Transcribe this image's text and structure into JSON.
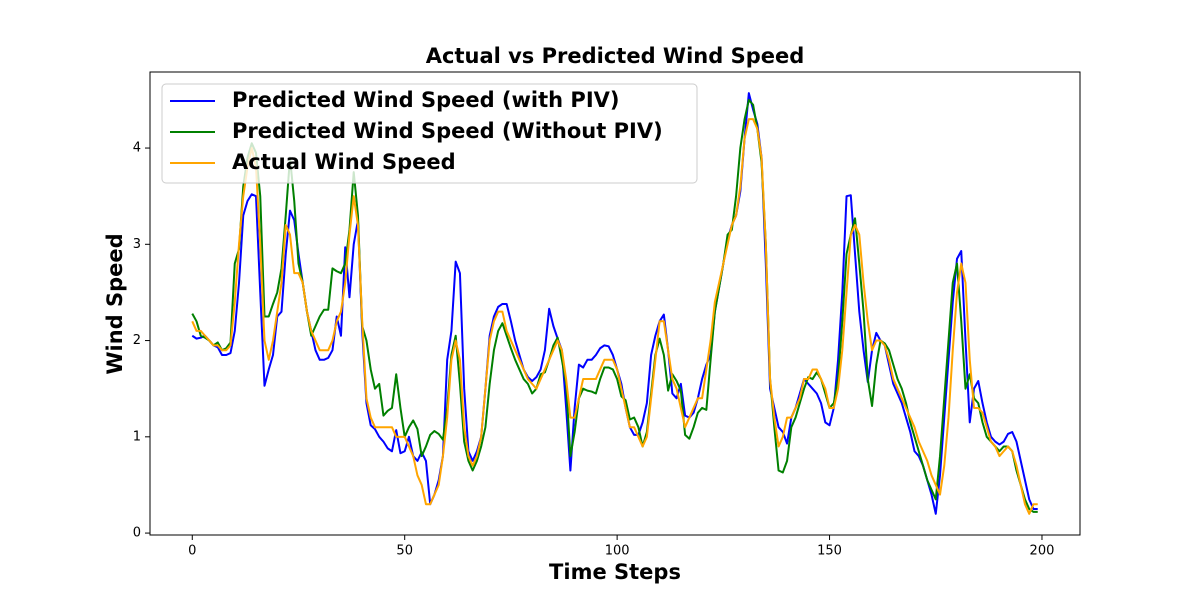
{
  "chart_data": {
    "type": "line",
    "title": "Actual vs Predicted Wind Speed",
    "x_label": "Time Steps",
    "y_label": "Wind Speed",
    "x": [
      0,
      1,
      2,
      3,
      4,
      5,
      6,
      7,
      8,
      9,
      10,
      11,
      12,
      13,
      14,
      15,
      16,
      17,
      18,
      19,
      20,
      21,
      22,
      23,
      24,
      25,
      26,
      27,
      28,
      29,
      30,
      31,
      32,
      33,
      34,
      35,
      36,
      37,
      38,
      39,
      40,
      41,
      42,
      43,
      44,
      45,
      46,
      47,
      48,
      49,
      50,
      51,
      52,
      53,
      54,
      55,
      56,
      57,
      58,
      59,
      60,
      61,
      62,
      63,
      64,
      65,
      66,
      67,
      68,
      69,
      70,
      71,
      72,
      73,
      74,
      75,
      76,
      77,
      78,
      79,
      80,
      81,
      82,
      83,
      84,
      85,
      86,
      87,
      88,
      89,
      90,
      91,
      92,
      93,
      94,
      95,
      96,
      97,
      98,
      99,
      100,
      101,
      102,
      103,
      104,
      105,
      106,
      107,
      108,
      109,
      110,
      111,
      112,
      113,
      114,
      115,
      116,
      117,
      118,
      119,
      120,
      121,
      122,
      123,
      124,
      125,
      126,
      127,
      128,
      129,
      130,
      131,
      132,
      133,
      134,
      135,
      136,
      137,
      138,
      139,
      140,
      141,
      142,
      143,
      144,
      145,
      146,
      147,
      148,
      149,
      150,
      151,
      152,
      153,
      154,
      155,
      156,
      157,
      158,
      159,
      160,
      161,
      162,
      163,
      164,
      165,
      166,
      167,
      168,
      169,
      170,
      171,
      172,
      173,
      174,
      175,
      176,
      177,
      178,
      179,
      180,
      181,
      182,
      183,
      184,
      185,
      186,
      187,
      188,
      189,
      190,
      191,
      192,
      193,
      194,
      195,
      196,
      197,
      198,
      199
    ],
    "series": [
      {
        "name": "Predicted Wind Speed (with PIV)",
        "color": "#0000ff",
        "values": [
          2.05,
          2.02,
          2.03,
          2.05,
          2.0,
          1.95,
          1.93,
          1.85,
          1.85,
          1.87,
          2.1,
          2.6,
          3.3,
          3.45,
          3.52,
          3.5,
          2.5,
          1.53,
          1.7,
          1.85,
          2.25,
          2.3,
          2.9,
          3.35,
          3.25,
          2.9,
          2.6,
          2.3,
          2.1,
          1.9,
          1.8,
          1.8,
          1.82,
          1.9,
          2.25,
          2.05,
          2.97,
          2.45,
          3.0,
          3.25,
          2.1,
          1.35,
          1.12,
          1.08,
          1.0,
          0.95,
          0.88,
          0.85,
          1.07,
          0.83,
          0.85,
          1.0,
          0.8,
          0.75,
          0.84,
          0.75,
          0.3,
          0.4,
          0.55,
          0.8,
          1.8,
          2.1,
          2.82,
          2.7,
          1.5,
          0.85,
          0.75,
          0.85,
          1.0,
          1.5,
          2.05,
          2.25,
          2.35,
          2.38,
          2.38,
          2.2,
          2.0,
          1.85,
          1.7,
          1.62,
          1.58,
          1.62,
          1.7,
          1.9,
          2.33,
          2.15,
          2.02,
          1.9,
          1.3,
          0.65,
          1.3,
          1.75,
          1.72,
          1.8,
          1.8,
          1.85,
          1.92,
          1.95,
          1.94,
          1.85,
          1.7,
          1.55,
          1.3,
          1.1,
          1.02,
          1.02,
          1.15,
          1.35,
          1.85,
          2.05,
          2.2,
          2.27,
          1.9,
          1.45,
          1.4,
          1.55,
          1.22,
          1.2,
          1.25,
          1.4,
          1.6,
          1.75,
          1.85,
          2.3,
          2.55,
          2.8,
          3.05,
          3.2,
          3.3,
          3.55,
          4.1,
          4.57,
          4.4,
          4.25,
          3.9,
          2.8,
          1.5,
          1.3,
          1.1,
          1.05,
          0.93,
          1.2,
          1.3,
          1.45,
          1.6,
          1.55,
          1.5,
          1.45,
          1.35,
          1.15,
          1.12,
          1.3,
          1.8,
          2.5,
          3.5,
          3.51,
          2.9,
          2.3,
          1.9,
          1.57,
          1.9,
          2.08,
          2.0,
          1.95,
          1.75,
          1.55,
          1.45,
          1.35,
          1.2,
          1.05,
          0.85,
          0.8,
          0.7,
          0.55,
          0.4,
          0.2,
          0.6,
          1.2,
          1.8,
          2.4,
          2.85,
          2.93,
          2.0,
          1.15,
          1.5,
          1.58,
          1.35,
          1.15,
          1.0,
          0.95,
          0.92,
          0.95,
          1.03,
          1.05,
          0.95,
          0.75,
          0.55,
          0.35,
          0.25,
          0.25
        ]
      },
      {
        "name": "Predicted Wind Speed (Without PIV)",
        "color": "#008000",
        "values": [
          2.28,
          2.2,
          2.05,
          2.03,
          2.0,
          1.95,
          1.98,
          1.9,
          1.92,
          1.98,
          2.8,
          2.95,
          3.6,
          3.9,
          4.05,
          3.95,
          3.5,
          2.25,
          2.25,
          2.38,
          2.5,
          2.75,
          3.3,
          3.9,
          3.45,
          2.8,
          2.6,
          2.3,
          2.05,
          2.15,
          2.25,
          2.32,
          2.32,
          2.75,
          2.72,
          2.7,
          2.8,
          3.15,
          3.75,
          3.3,
          2.15,
          2.0,
          1.7,
          1.5,
          1.55,
          1.22,
          1.27,
          1.3,
          1.65,
          1.3,
          1.0,
          1.1,
          1.17,
          1.08,
          0.8,
          0.9,
          1.02,
          1.06,
          1.03,
          0.97,
          1.3,
          1.85,
          2.05,
          1.55,
          0.95,
          0.75,
          0.65,
          0.75,
          0.9,
          1.1,
          1.55,
          1.9,
          2.1,
          2.18,
          2.05,
          1.92,
          1.8,
          1.7,
          1.6,
          1.55,
          1.45,
          1.5,
          1.65,
          1.67,
          1.8,
          1.95,
          2.03,
          1.8,
          1.55,
          0.8,
          1.05,
          1.4,
          1.5,
          1.48,
          1.47,
          1.45,
          1.6,
          1.72,
          1.72,
          1.7,
          1.6,
          1.42,
          1.38,
          1.18,
          1.2,
          1.1,
          0.9,
          1.05,
          1.45,
          1.85,
          2.02,
          1.85,
          1.48,
          1.65,
          1.58,
          1.48,
          1.02,
          0.98,
          1.1,
          1.25,
          1.3,
          1.28,
          1.8,
          2.3,
          2.55,
          2.8,
          3.1,
          3.15,
          3.5,
          4.0,
          4.3,
          4.5,
          4.45,
          4.2,
          3.85,
          3.0,
          1.6,
          1.1,
          0.65,
          0.63,
          0.75,
          1.1,
          1.2,
          1.35,
          1.5,
          1.62,
          1.6,
          1.67,
          1.6,
          1.45,
          1.3,
          1.35,
          1.6,
          2.2,
          2.9,
          3.1,
          3.27,
          2.8,
          2.3,
          1.6,
          1.32,
          1.75,
          2.0,
          1.97,
          1.9,
          1.75,
          1.6,
          1.5,
          1.35,
          1.15,
          1.0,
          0.85,
          0.7,
          0.55,
          0.45,
          0.35,
          0.8,
          1.4,
          2.0,
          2.6,
          2.8,
          2.2,
          1.5,
          1.65,
          1.4,
          1.35,
          1.15,
          1.0,
          0.95,
          0.9,
          0.85,
          0.9,
          0.9,
          0.85,
          0.65,
          0.5,
          0.35,
          0.25,
          0.22,
          0.22
        ]
      },
      {
        "name": "Actual Wind Speed",
        "color": "#ffa500",
        "values": [
          2.2,
          2.1,
          2.1,
          2.05,
          2.0,
          1.95,
          1.95,
          1.9,
          1.9,
          1.95,
          2.4,
          3.0,
          3.5,
          3.8,
          4.0,
          3.8,
          3.0,
          2.0,
          1.8,
          2.0,
          2.3,
          2.6,
          3.2,
          3.1,
          2.7,
          2.7,
          2.6,
          2.3,
          2.1,
          2.0,
          1.9,
          1.9,
          1.9,
          2.0,
          2.2,
          2.3,
          2.6,
          3.1,
          3.5,
          3.2,
          2.2,
          1.4,
          1.2,
          1.1,
          1.1,
          1.1,
          1.1,
          1.1,
          1.0,
          1.0,
          1.0,
          0.9,
          0.8,
          0.6,
          0.5,
          0.3,
          0.3,
          0.4,
          0.5,
          0.8,
          1.2,
          1.8,
          2.0,
          1.8,
          1.1,
          0.8,
          0.7,
          0.8,
          1.0,
          1.5,
          2.0,
          2.2,
          2.3,
          2.3,
          2.1,
          2.0,
          1.9,
          1.8,
          1.7,
          1.6,
          1.55,
          1.5,
          1.6,
          1.7,
          1.8,
          1.9,
          2.0,
          1.9,
          1.6,
          1.2,
          1.2,
          1.4,
          1.6,
          1.6,
          1.6,
          1.6,
          1.7,
          1.8,
          1.8,
          1.8,
          1.7,
          1.5,
          1.3,
          1.1,
          1.1,
          1.0,
          0.9,
          1.0,
          1.4,
          1.8,
          2.2,
          2.2,
          1.9,
          1.6,
          1.5,
          1.3,
          1.1,
          1.2,
          1.3,
          1.4,
          1.4,
          1.7,
          2.0,
          2.4,
          2.6,
          2.8,
          3.0,
          3.2,
          3.3,
          3.6,
          4.1,
          4.3,
          4.3,
          4.2,
          3.9,
          3.0,
          1.6,
          1.2,
          0.9,
          1.0,
          1.2,
          1.2,
          1.3,
          1.4,
          1.6,
          1.6,
          1.7,
          1.7,
          1.6,
          1.5,
          1.3,
          1.3,
          1.5,
          1.9,
          2.5,
          3.1,
          3.2,
          3.1,
          2.6,
          2.2,
          1.9,
          2.0,
          2.0,
          1.95,
          1.8,
          1.6,
          1.5,
          1.4,
          1.3,
          1.2,
          1.1,
          0.95,
          0.85,
          0.75,
          0.6,
          0.5,
          0.4,
          0.7,
          1.2,
          1.9,
          2.5,
          2.8,
          2.6,
          1.8,
          1.3,
          1.3,
          1.25,
          1.1,
          0.95,
          0.9,
          0.8,
          0.85,
          0.9,
          0.85,
          0.7,
          0.5,
          0.3,
          0.2,
          0.3,
          0.3
        ]
      }
    ],
    "xlim": [
      -9.95,
      208.95
    ],
    "ylim": [
      -0.02,
      4.79
    ],
    "xticks": [
      0,
      50,
      100,
      150,
      200
    ],
    "yticks": [
      0,
      1,
      2,
      3,
      4
    ],
    "grid": false,
    "legend": "upper left"
  }
}
